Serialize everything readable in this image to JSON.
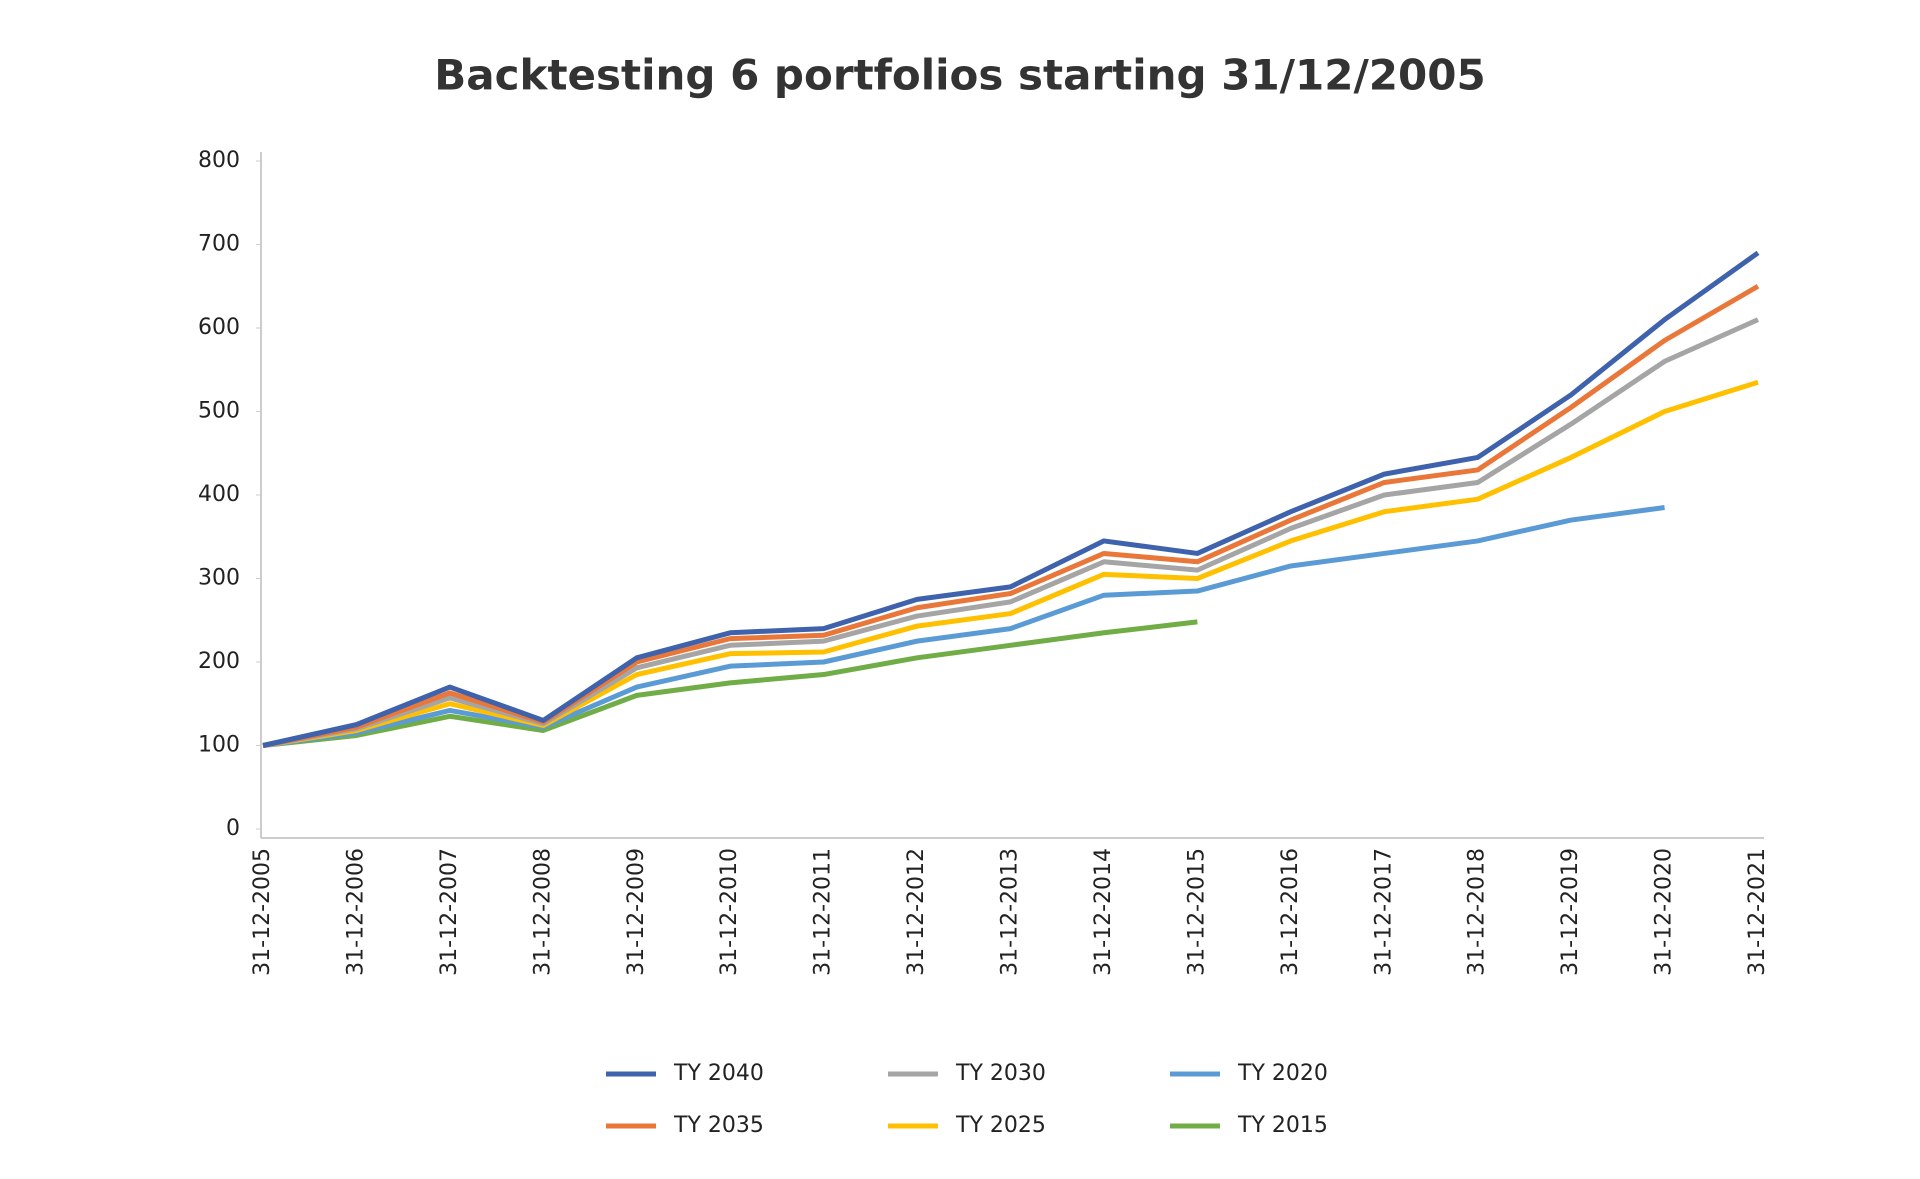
{
  "chart_data": {
    "type": "line",
    "title": "Backtesting 6 portfolios starting 31/12/2005",
    "categories": [
      "31-12-2005",
      "31-12-2006",
      "31-12-2007",
      "31-12-2008",
      "31-12-2009",
      "31-12-2010",
      "31-12-2011",
      "31-12-2012",
      "31-12-2013",
      "31-12-2014",
      "31-12-2015",
      "31-12-2016",
      "31-12-2017",
      "31-12-2018",
      "31-12-2019",
      "31-12-2020",
      "31-12-2021"
    ],
    "series": [
      {
        "name": "TY 2040",
        "color": "#3f62ad",
        "values": [
          100,
          125,
          170,
          130,
          205,
          235,
          240,
          275,
          290,
          345,
          330,
          380,
          425,
          445,
          520,
          610,
          690
        ]
      },
      {
        "name": "TY 2035",
        "color": "#e9773a",
        "values": [
          100,
          122,
          163,
          128,
          200,
          228,
          232,
          265,
          282,
          330,
          320,
          370,
          415,
          430,
          505,
          585,
          650
        ]
      },
      {
        "name": "TY 2030",
        "color": "#a5a5a5",
        "values": [
          100,
          120,
          157,
          126,
          193,
          220,
          225,
          255,
          272,
          320,
          310,
          360,
          400,
          415,
          485,
          560,
          610
        ]
      },
      {
        "name": "TY 2025",
        "color": "#ffc000",
        "values": [
          100,
          118,
          150,
          124,
          185,
          210,
          212,
          243,
          258,
          305,
          300,
          345,
          380,
          395,
          445,
          500,
          535
        ]
      },
      {
        "name": "TY 2020",
        "color": "#5b9bd5",
        "values": [
          100,
          115,
          142,
          122,
          170,
          195,
          200,
          225,
          240,
          280,
          285,
          315,
          330,
          345,
          370,
          385,
          null
        ]
      },
      {
        "name": "TY 2015",
        "color": "#70ad47",
        "values": [
          100,
          112,
          135,
          118,
          160,
          175,
          185,
          205,
          220,
          235,
          248,
          null,
          null,
          null,
          null,
          null,
          null
        ]
      }
    ],
    "ylim": [
      0,
      800
    ],
    "yticks": [
      0,
      100,
      200,
      300,
      400,
      500,
      600,
      700,
      800
    ],
    "grid": false
  }
}
